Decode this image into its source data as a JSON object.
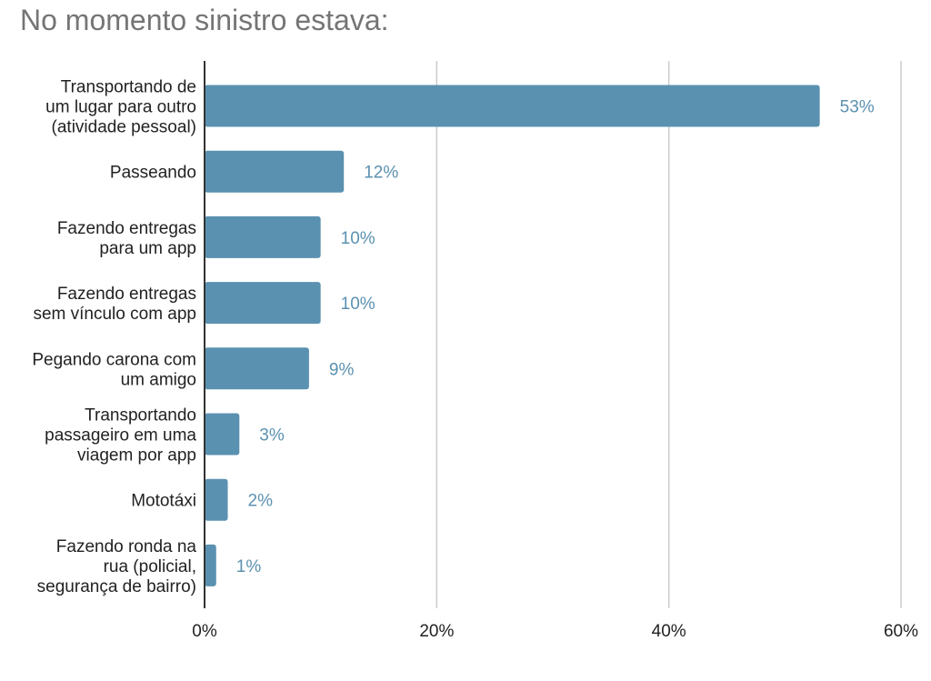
{
  "chart_data": {
    "type": "bar",
    "orientation": "horizontal",
    "title": "No momento sinistro estava:",
    "xlabel": "",
    "ylabel": "",
    "categories": [
      [
        "Transportando de",
        "um lugar para outro",
        "(atividade pessoal)"
      ],
      [
        "Passeando"
      ],
      [
        "Fazendo entregas",
        "para um app"
      ],
      [
        "Fazendo entregas",
        "sem vínculo com app"
      ],
      [
        "Pegando carona com",
        "um amigo"
      ],
      [
        "Transportando",
        "passageiro em uma",
        "viagem por app"
      ],
      [
        "Mototáxi"
      ],
      [
        "Fazendo ronda na",
        "rua (policial,",
        "segurança de bairro)"
      ]
    ],
    "values": [
      53,
      12,
      10,
      10,
      9,
      3,
      2,
      1
    ],
    "value_labels": [
      "53%",
      "12%",
      "10%",
      "10%",
      "9%",
      "3%",
      "2%",
      "1%"
    ],
    "xlim": [
      0,
      60
    ],
    "x_ticks": [
      0,
      20,
      40,
      60
    ],
    "x_tick_labels": [
      "0%",
      "20%",
      "40%",
      "60%"
    ],
    "grid": true,
    "legend": "none",
    "colors": {
      "bar": "#5b91b0",
      "value_label": "#5b91b0",
      "grid": "#cccccc",
      "axis": "#333333",
      "title": "#757575"
    }
  }
}
